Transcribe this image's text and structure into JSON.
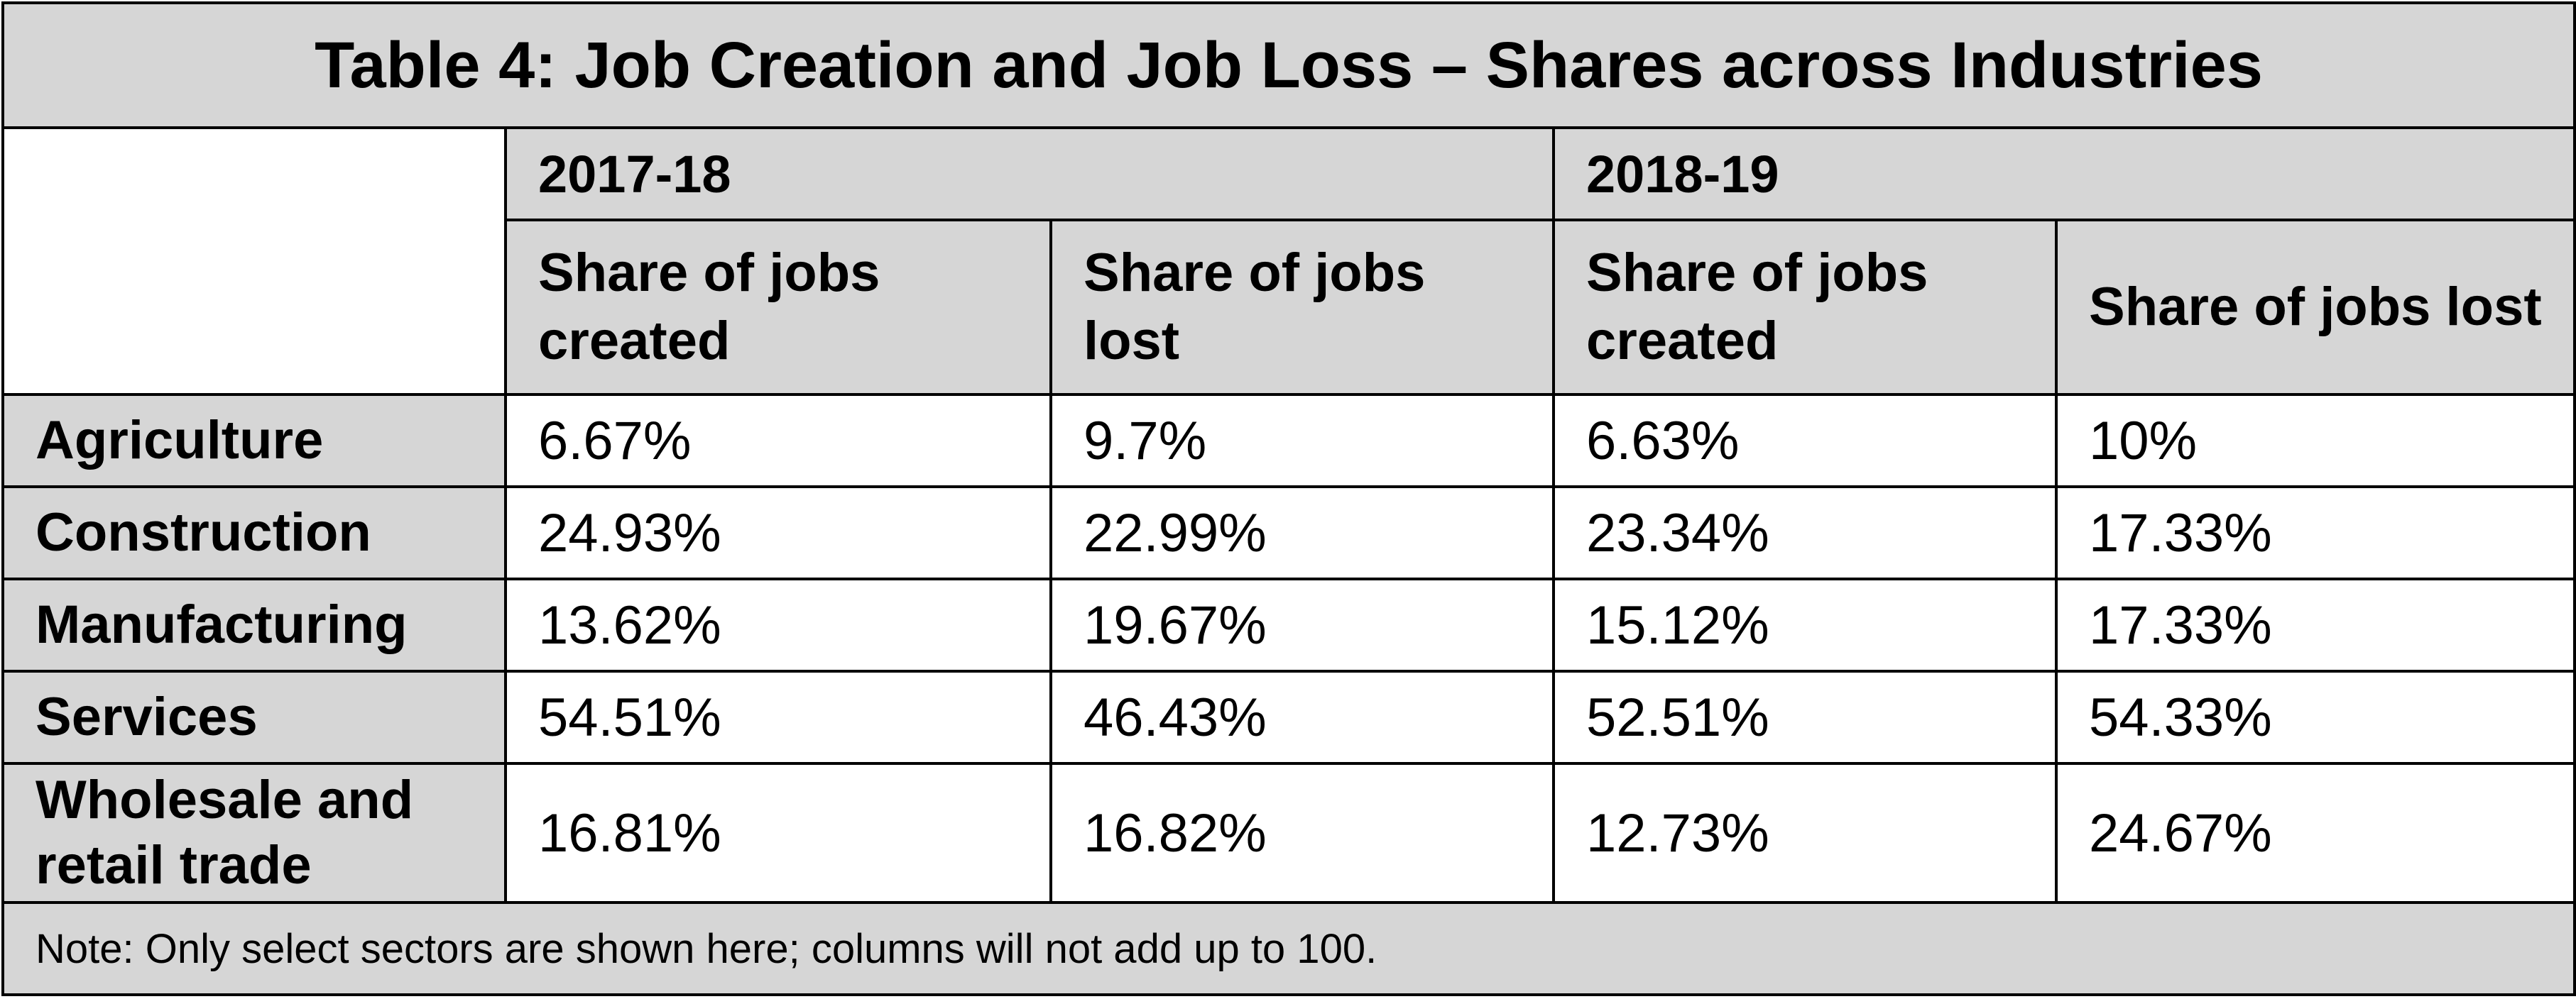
{
  "title": "Table 4: Job Creation and Job Loss – Shares across Industries",
  "years": [
    "2017-18",
    "2018-19"
  ],
  "column_headers": [
    "Share of jobs created",
    "Share of jobs lost",
    "Share of jobs created",
    "Share of jobs lost"
  ],
  "rows": [
    {
      "label": "Agriculture",
      "values": [
        "6.67%",
        "9.7%",
        "6.63%",
        "10%"
      ]
    },
    {
      "label": "Construction",
      "values": [
        "24.93%",
        "22.99%",
        "23.34%",
        "17.33%"
      ]
    },
    {
      "label": "Manufacturing",
      "values": [
        "13.62%",
        "19.67%",
        "15.12%",
        "17.33%"
      ]
    },
    {
      "label": "Services",
      "values": [
        "54.51%",
        "46.43%",
        "52.51%",
        "54.33%"
      ]
    },
    {
      "label": "Wholesale and retail trade",
      "values": [
        "16.81%",
        "16.82%",
        "12.73%",
        "24.67%"
      ]
    }
  ],
  "note": "Note: Only select sectors are shown here; columns will not add up to 100.",
  "colors": {
    "header_gray": "#d6d6d6",
    "border": "#000000"
  }
}
